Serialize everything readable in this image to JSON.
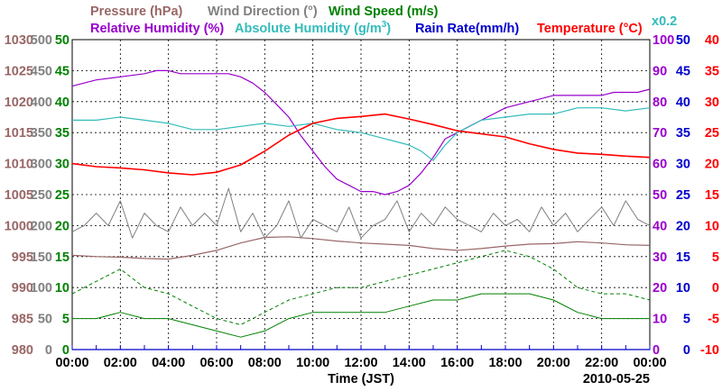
{
  "chart_data": {
    "type": "line",
    "title": "",
    "date": "2010-05-25",
    "xlabel": "Time (JST)",
    "x_ticks": [
      "00:00",
      "02:00",
      "04:00",
      "06:00",
      "08:00",
      "10:00",
      "12:00",
      "14:00",
      "16:00",
      "18:00",
      "20:00",
      "22:00",
      "00:00"
    ],
    "x_range_hours": [
      0,
      24
    ],
    "note": "x0.2",
    "legend": {
      "pressure": "Pressure (hPa)",
      "wind_direction": "Wind Direction (°)",
      "wind_speed": "Wind Speed (m/s)",
      "relative_humidity": "Relative Humidity (%)",
      "absolute_humidity_prefix": "Absolute Humidity (g/m",
      "absolute_humidity_sup": "3",
      "absolute_humidity_suffix": ")",
      "rain_rate": "Rain Rate(mm/h)",
      "temperature": "Temperature (°C)"
    },
    "axes": {
      "pressure": {
        "ticks": [
          "1030",
          "1025",
          "1020",
          "1015",
          "1010",
          "1005",
          "1000",
          "995",
          "990",
          "985",
          "980"
        ],
        "ylim": [
          980,
          1030
        ],
        "color": "#996666"
      },
      "wind_dir": {
        "ticks": [
          "500",
          "450",
          "400",
          "350",
          "300",
          "250",
          "200",
          "150",
          "100",
          "50",
          "0"
        ],
        "ylim": [
          0,
          500
        ],
        "color": "#808080"
      },
      "wind_speed": {
        "ticks": [
          "50",
          "45",
          "40",
          "35",
          "30",
          "25",
          "20",
          "15",
          "10",
          "5",
          "0"
        ],
        "ylim": [
          0,
          50
        ],
        "color": "#008000"
      },
      "humidity": {
        "ticks": [
          "100",
          "90",
          "80",
          "70",
          "60",
          "50",
          "40",
          "30",
          "20",
          "10",
          "0"
        ],
        "ylim": [
          0,
          100
        ],
        "color": "#9900cc"
      },
      "rain": {
        "ticks": [
          "50",
          "45",
          "40",
          "35",
          "30",
          "25",
          "20",
          "15",
          "10",
          "5",
          "0"
        ],
        "ylim": [
          0,
          50
        ],
        "color": "#0000cc"
      },
      "temperature": {
        "ticks": [
          "40",
          "35",
          "30",
          "25",
          "20",
          "15",
          "10",
          "5",
          "0",
          "-5",
          "-10"
        ],
        "ylim": [
          -10,
          40
        ],
        "color": "#ff0000"
      }
    },
    "colors": {
      "pressure": "#996666",
      "wind_direction": "#808080",
      "wind_speed": "#008000",
      "relative_humidity": "#9900cc",
      "absolute_humidity": "#33bbbb",
      "rain_rate": "#0000cc",
      "temperature": "#ff0000"
    },
    "series": [
      {
        "name": "Relative Humidity",
        "unit": "%",
        "axis": "humidity",
        "x": [
          0,
          1,
          2,
          3,
          3.5,
          4,
          4.5,
          5,
          6,
          6.5,
          7,
          7.5,
          8,
          8.5,
          9,
          9.5,
          10,
          10.5,
          11,
          11.5,
          12,
          12.5,
          13,
          13.5,
          14,
          14.5,
          15,
          15.5,
          16,
          16.5,
          17,
          17.5,
          18,
          18.5,
          19,
          19.5,
          20,
          20.5,
          21,
          21.5,
          22,
          22.5,
          23,
          23.5,
          24
        ],
        "values": [
          85,
          87,
          88,
          89,
          90,
          90,
          89,
          89,
          89,
          89,
          88,
          86,
          83,
          79,
          75,
          69,
          64,
          59,
          55,
          53,
          51,
          51,
          50,
          51,
          53,
          57,
          62,
          68,
          70,
          72,
          74,
          76,
          78,
          79,
          80,
          81,
          82,
          82,
          82,
          82,
          82,
          83,
          83,
          83,
          84
        ]
      },
      {
        "name": "Absolute Humidity",
        "unit": "g/m3 (x0.2)",
        "axis": "humidity",
        "x": [
          0,
          1,
          2,
          3,
          4,
          5,
          6,
          7,
          8,
          9,
          10,
          11,
          12,
          12.5,
          13,
          13.5,
          14,
          14.5,
          15,
          15.5,
          16,
          16.5,
          17,
          18,
          19,
          20,
          21,
          22,
          23,
          24
        ],
        "values": [
          74,
          74,
          75,
          74,
          73,
          71,
          71,
          72,
          73,
          72,
          73,
          71,
          70,
          69,
          68,
          67,
          66,
          64,
          61,
          66,
          70,
          72,
          74,
          75,
          76,
          76,
          78,
          78,
          77,
          78
        ]
      },
      {
        "name": "Temperature",
        "unit": "°C",
        "axis": "temperature",
        "x": [
          0,
          1,
          2,
          3,
          4,
          5,
          6,
          7,
          8,
          9,
          10,
          11,
          12,
          13,
          14,
          15,
          16,
          17,
          18,
          19,
          20,
          21,
          22,
          23,
          24
        ],
        "values": [
          20,
          19.5,
          19.3,
          19.0,
          18.5,
          18.2,
          18.6,
          19.8,
          22.0,
          24.6,
          26.5,
          27.3,
          27.6,
          28.0,
          27.2,
          26.3,
          25.3,
          24.8,
          24.3,
          23.2,
          22.3,
          21.7,
          21.5,
          21.2,
          21.0
        ]
      },
      {
        "name": "Pressure",
        "unit": "hPa",
        "axis": "pressure",
        "x": [
          0,
          1,
          2,
          3,
          4,
          5,
          6,
          7,
          8,
          9,
          10,
          11,
          12,
          13,
          14,
          15,
          16,
          17,
          18,
          19,
          20,
          21,
          22,
          23,
          24
        ],
        "values": [
          995.2,
          995.0,
          994.9,
          994.7,
          994.6,
          995.2,
          996.0,
          997.2,
          998.1,
          998.2,
          997.9,
          997.5,
          997.2,
          997.0,
          996.8,
          996.3,
          996.0,
          996.3,
          996.7,
          997.0,
          997.1,
          997.4,
          997.2,
          996.9,
          996.8
        ]
      },
      {
        "name": "Wind Direction",
        "unit": "°",
        "axis": "wind_dir",
        "x": [
          0,
          0.5,
          1,
          1.5,
          2,
          2.5,
          3,
          3.5,
          4,
          4.5,
          5,
          5.5,
          6,
          6.5,
          7,
          7.5,
          8,
          8.5,
          9,
          9.5,
          10,
          10.5,
          11,
          11.5,
          12,
          12.5,
          13,
          13.5,
          14,
          14.5,
          15,
          15.5,
          16,
          16.5,
          17,
          17.5,
          18,
          18.5,
          19,
          19.5,
          20,
          20.5,
          21,
          21.5,
          22,
          22.5,
          23,
          23.5,
          24
        ],
        "values": [
          190,
          200,
          220,
          200,
          240,
          180,
          220,
          200,
          190,
          230,
          200,
          220,
          200,
          260,
          190,
          220,
          180,
          200,
          240,
          180,
          210,
          200,
          190,
          230,
          180,
          200,
          210,
          240,
          190,
          220,
          200,
          230,
          210,
          200,
          190,
          220,
          200,
          210,
          190,
          230,
          200,
          220,
          190,
          210,
          230,
          200,
          240,
          210,
          200
        ]
      },
      {
        "name": "Wind Speed (avg)",
        "unit": "m/s",
        "axis": "wind_speed",
        "x": [
          0,
          1,
          2,
          3,
          4,
          5,
          6,
          7,
          8,
          9,
          10,
          11,
          12,
          13,
          14,
          15,
          16,
          17,
          18,
          19,
          20,
          21,
          22,
          23,
          24
        ],
        "values": [
          5,
          5,
          6,
          5,
          5,
          4,
          3,
          2,
          3,
          5,
          6,
          6,
          6,
          6,
          7,
          8,
          8,
          9,
          9,
          9,
          8,
          6,
          5,
          5,
          5
        ]
      },
      {
        "name": "Wind Speed (max)",
        "unit": "m/s",
        "axis": "wind_speed",
        "x": [
          0,
          1,
          2,
          3,
          4,
          5,
          6,
          7,
          8,
          9,
          10,
          11,
          12,
          13,
          14,
          15,
          16,
          17,
          18,
          19,
          20,
          21,
          22,
          23,
          24
        ],
        "values": [
          9,
          11,
          13,
          10,
          9,
          7,
          5,
          4,
          6,
          8,
          9,
          10,
          10,
          11,
          12,
          13,
          14,
          15,
          16,
          15,
          13,
          10,
          9,
          9,
          8
        ]
      },
      {
        "name": "Rain Rate",
        "unit": "mm/h",
        "axis": "rain",
        "x": [
          0,
          24
        ],
        "values": [
          0,
          0
        ]
      }
    ]
  }
}
